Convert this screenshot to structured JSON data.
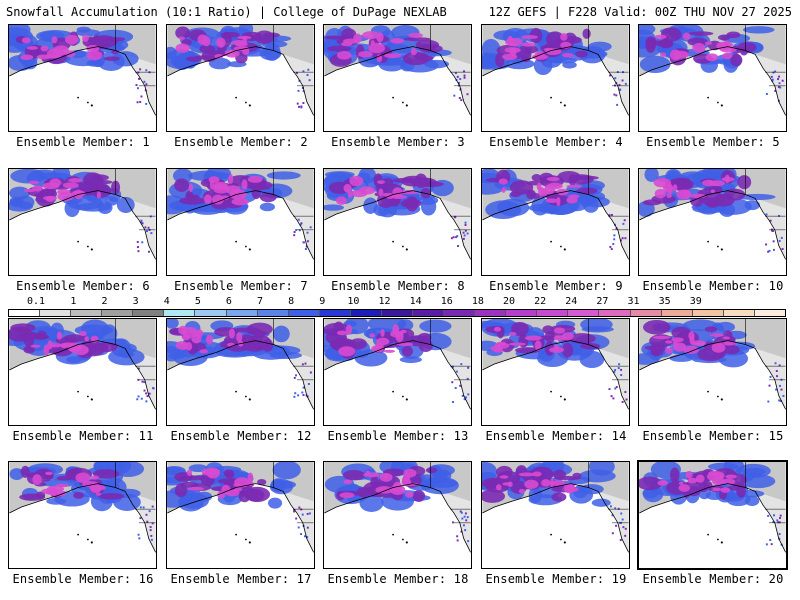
{
  "header": {
    "title_left": "Snowfall Accumulation (10:1 Ratio) | College of DuPage NEXLAB",
    "title_right": "12Z GEFS | F228 Valid: 00Z THU NOV 27 2025"
  },
  "members": [
    "Ensemble Member: 1",
    "Ensemble Member: 2",
    "Ensemble Member: 3",
    "Ensemble Member: 4",
    "Ensemble Member: 5",
    "Ensemble Member: 6",
    "Ensemble Member: 7",
    "Ensemble Member: 8",
    "Ensemble Member: 9",
    "Ensemble Member: 10",
    "Ensemble Member: 11",
    "Ensemble Member: 12",
    "Ensemble Member: 13",
    "Ensemble Member: 14",
    "Ensemble Member: 15",
    "Ensemble Member: 16",
    "Ensemble Member: 17",
    "Ensemble Member: 18",
    "Ensemble Member: 19",
    "Ensemble Member: 20"
  ],
  "selected_member": 20,
  "legend": {
    "labels": [
      "0.1",
      "1",
      "2",
      "3",
      "4",
      "5",
      "6",
      "7",
      "8",
      "9",
      "10",
      "12",
      "14",
      "16",
      "18",
      "20",
      "22",
      "24",
      "27",
      "31",
      "35",
      "39"
    ],
    "colors": [
      "#ffffff",
      "#e0e0e0",
      "#bdbdbd",
      "#a0a0a0",
      "#808080",
      "#aee8f2",
      "#9ec8f0",
      "#7aa6ee",
      "#5a84ea",
      "#3f5fe6",
      "#2a39d6",
      "#1e1fb8",
      "#3a1a9a",
      "#5a1ea6",
      "#7a2ab2",
      "#9a34be",
      "#b63ecc",
      "#c84ad0",
      "#d85ad2",
      "#e06ac0",
      "#e68aa6",
      "#eeaa98",
      "#f3c4a4",
      "#f8dcc0",
      "#fbece0"
    ]
  },
  "colors": {
    "snow_light": "#c8c8c8",
    "snow_blue": "#3f5fe6",
    "snow_purple": "#7a2ab2",
    "snow_magenta": "#d84ad2",
    "ocean": "#ffffff",
    "coast": "#000000"
  }
}
